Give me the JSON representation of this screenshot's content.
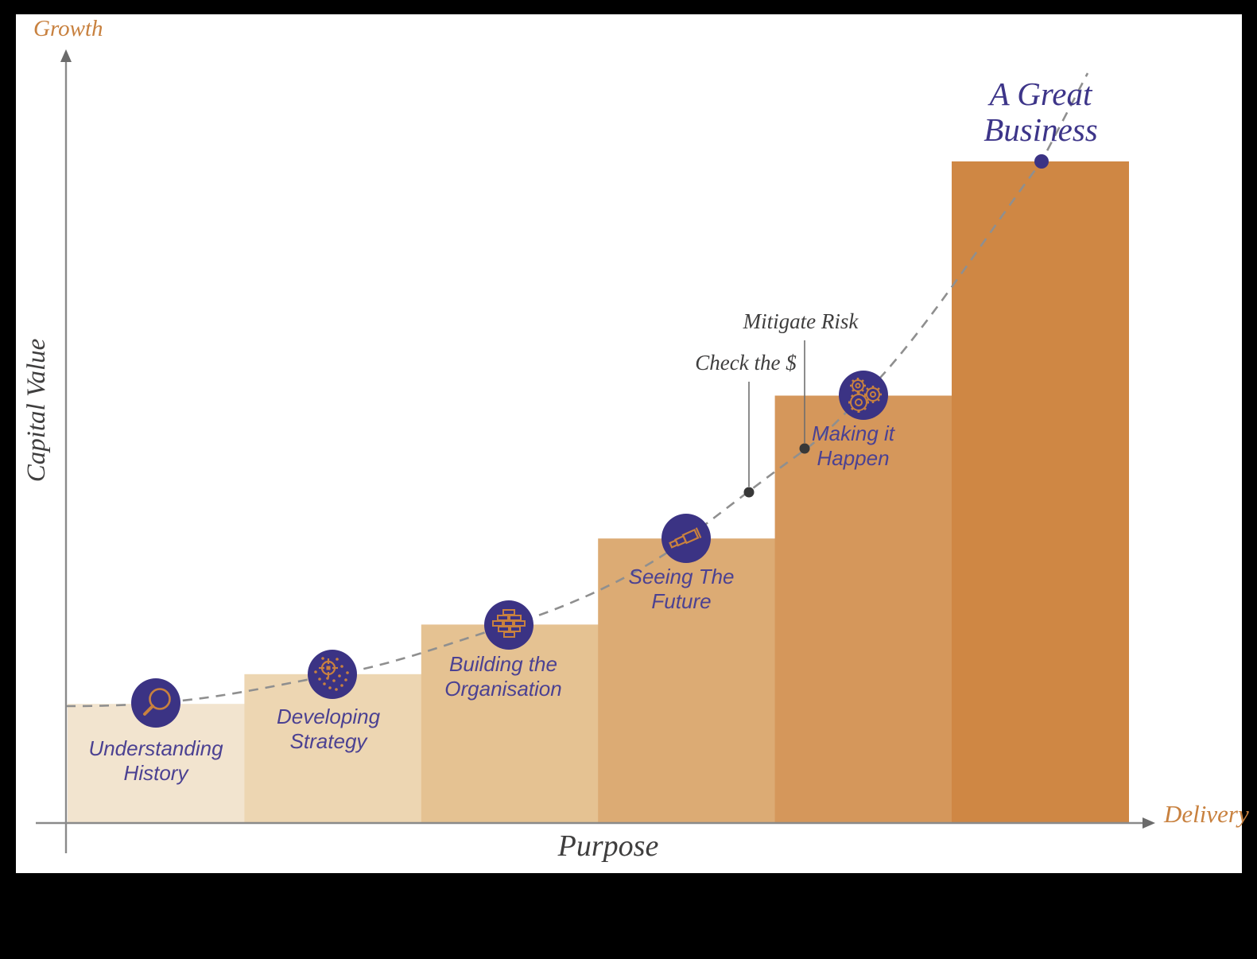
{
  "chart_data": {
    "type": "bar",
    "title": "",
    "categories": [
      "Understanding History",
      "Developing Strategy",
      "Building the Organisation",
      "Seeing The Future",
      "Making it Happen",
      "A Great Business"
    ],
    "values": [
      18,
      22.5,
      30,
      43,
      64.6,
      100
    ],
    "values_unit": "relative capital value (% of final bar height)",
    "xlabel": "Purpose",
    "ylabel": "Capital Value",
    "x_arrow_label": "Delivery",
    "y_arrow_label": "Growth",
    "grid": false,
    "legend": false,
    "bar_colors": [
      "#f2e4cf",
      "#edd6b2",
      "#e5c292",
      "#dcab74",
      "#d5975b",
      "#cf8744"
    ],
    "overlay_curve": "dashed grey exponential growth curve running through stage icons up to 'A Great Business'",
    "annotations": [
      {
        "text": "Check the $",
        "attached_to": "point on curve between Seeing The Future and Making it Happen"
      },
      {
        "text": "Mitigate Risk",
        "attached_to": "point on curve just before Making it Happen bar"
      }
    ]
  },
  "axes": {
    "y_title": "Capital Value",
    "y_arrow_label": "Growth",
    "x_title": "Purpose",
    "x_arrow_label": "Delivery"
  },
  "stages": [
    {
      "label": "Understanding\nHistory",
      "icon": "magnifier-icon"
    },
    {
      "label": "Developing\nStrategy",
      "icon": "target-icon"
    },
    {
      "label": "Building the\nOrganisation",
      "icon": "bricks-icon"
    },
    {
      "label": "Seeing The\nFuture",
      "icon": "telescope-icon"
    },
    {
      "label": "Making it\nHappen",
      "icon": "gears-icon"
    }
  ],
  "apex": {
    "label": "A Great\nBusiness"
  },
  "annotations": {
    "check": {
      "label": "Check the $"
    },
    "mitigate": {
      "label": "Mitigate Risk"
    }
  },
  "colors": {
    "accent_orange": "#c8813f",
    "indigo_circle": "#3b3384",
    "indigo_text": "#4b4192",
    "apex_text": "#3d3589",
    "axis_grey": "#8a8a8a",
    "curve_grey": "#8f8f8f",
    "dot_dark": "#383838",
    "background": "#ffffff",
    "frame": "#000000"
  }
}
